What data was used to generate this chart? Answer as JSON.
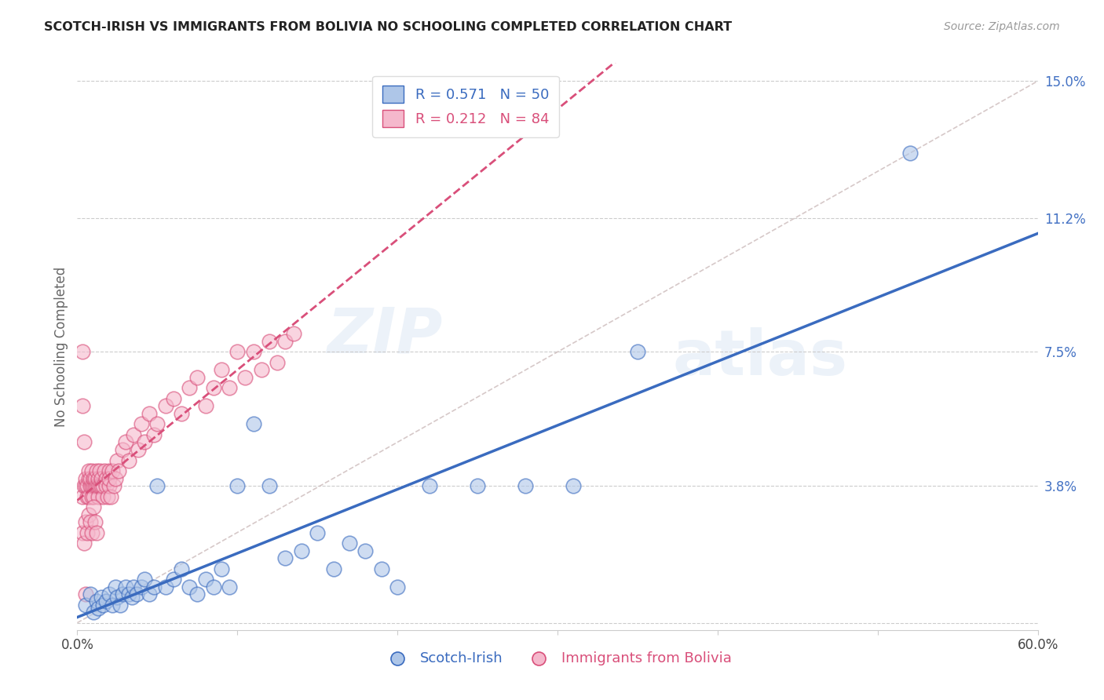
{
  "title": "SCOTCH-IRISH VS IMMIGRANTS FROM BOLIVIA NO SCHOOLING COMPLETED CORRELATION CHART",
  "source": "Source: ZipAtlas.com",
  "ylabel": "No Schooling Completed",
  "xlim": [
    0.0,
    0.6
  ],
  "ylim": [
    -0.002,
    0.155
  ],
  "yticks": [
    0.0,
    0.038,
    0.075,
    0.112,
    0.15
  ],
  "yticklabels": [
    "",
    "3.8%",
    "7.5%",
    "11.2%",
    "15.0%"
  ],
  "scotch_irish_R": 0.571,
  "scotch_irish_N": 50,
  "bolivia_R": 0.212,
  "bolivia_N": 84,
  "scotch_irish_color": "#aec6e8",
  "bolivia_color": "#f5b8cc",
  "trend_scotch_irish_color": "#3a6bbf",
  "trend_bolivia_color": "#d94f7a",
  "diagonal_color": "#ccbbbb",
  "watermark_zip": "ZIP",
  "watermark_atlas": "atlas",
  "scotch_irish_x": [
    0.005,
    0.008,
    0.01,
    0.012,
    0.013,
    0.015,
    0.016,
    0.018,
    0.02,
    0.022,
    0.024,
    0.025,
    0.027,
    0.028,
    0.03,
    0.032,
    0.034,
    0.035,
    0.037,
    0.04,
    0.042,
    0.045,
    0.048,
    0.05,
    0.055,
    0.06,
    0.065,
    0.07,
    0.075,
    0.08,
    0.085,
    0.09,
    0.095,
    0.1,
    0.11,
    0.12,
    0.13,
    0.14,
    0.15,
    0.16,
    0.17,
    0.18,
    0.19,
    0.2,
    0.22,
    0.25,
    0.28,
    0.31,
    0.35,
    0.52
  ],
  "scotch_irish_y": [
    0.005,
    0.008,
    0.003,
    0.006,
    0.004,
    0.007,
    0.005,
    0.006,
    0.008,
    0.005,
    0.01,
    0.007,
    0.005,
    0.008,
    0.01,
    0.008,
    0.007,
    0.01,
    0.008,
    0.01,
    0.012,
    0.008,
    0.01,
    0.038,
    0.01,
    0.012,
    0.015,
    0.01,
    0.008,
    0.012,
    0.01,
    0.015,
    0.01,
    0.038,
    0.055,
    0.038,
    0.018,
    0.02,
    0.025,
    0.015,
    0.022,
    0.02,
    0.015,
    0.01,
    0.038,
    0.038,
    0.038,
    0.038,
    0.075,
    0.13
  ],
  "bolivia_x": [
    0.003,
    0.004,
    0.005,
    0.005,
    0.006,
    0.006,
    0.007,
    0.007,
    0.007,
    0.008,
    0.008,
    0.009,
    0.009,
    0.009,
    0.01,
    0.01,
    0.01,
    0.011,
    0.011,
    0.012,
    0.012,
    0.013,
    0.013,
    0.013,
    0.014,
    0.014,
    0.015,
    0.015,
    0.016,
    0.016,
    0.017,
    0.018,
    0.018,
    0.019,
    0.02,
    0.02,
    0.02,
    0.021,
    0.022,
    0.023,
    0.024,
    0.025,
    0.026,
    0.028,
    0.03,
    0.032,
    0.035,
    0.038,
    0.04,
    0.042,
    0.045,
    0.048,
    0.05,
    0.055,
    0.06,
    0.065,
    0.07,
    0.075,
    0.08,
    0.085,
    0.09,
    0.095,
    0.1,
    0.105,
    0.11,
    0.115,
    0.12,
    0.125,
    0.13,
    0.135,
    0.003,
    0.004,
    0.005,
    0.006,
    0.007,
    0.008,
    0.009,
    0.01,
    0.011,
    0.012,
    0.003,
    0.003,
    0.004,
    0.005
  ],
  "bolivia_y": [
    0.035,
    0.038,
    0.038,
    0.04,
    0.035,
    0.038,
    0.04,
    0.035,
    0.042,
    0.038,
    0.04,
    0.035,
    0.038,
    0.042,
    0.038,
    0.04,
    0.035,
    0.038,
    0.04,
    0.038,
    0.042,
    0.035,
    0.038,
    0.04,
    0.038,
    0.042,
    0.038,
    0.04,
    0.035,
    0.038,
    0.042,
    0.04,
    0.038,
    0.035,
    0.042,
    0.038,
    0.04,
    0.035,
    0.042,
    0.038,
    0.04,
    0.045,
    0.042,
    0.048,
    0.05,
    0.045,
    0.052,
    0.048,
    0.055,
    0.05,
    0.058,
    0.052,
    0.055,
    0.06,
    0.062,
    0.058,
    0.065,
    0.068,
    0.06,
    0.065,
    0.07,
    0.065,
    0.075,
    0.068,
    0.075,
    0.07,
    0.078,
    0.072,
    0.078,
    0.08,
    0.025,
    0.022,
    0.028,
    0.025,
    0.03,
    0.028,
    0.025,
    0.032,
    0.028,
    0.025,
    0.075,
    0.06,
    0.05,
    0.008
  ]
}
